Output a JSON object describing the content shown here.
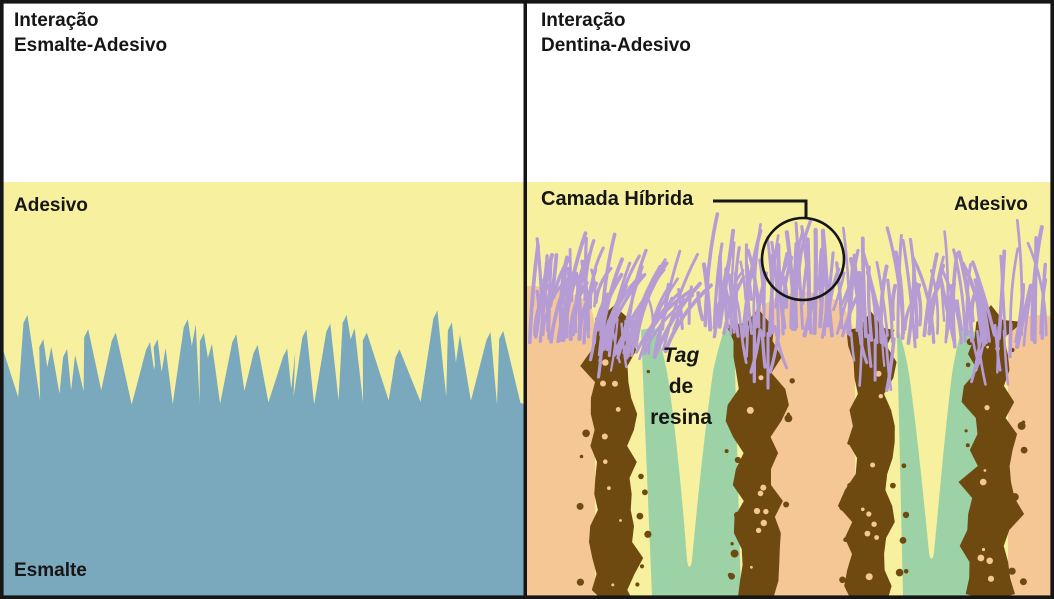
{
  "figure": {
    "left_panel": {
      "title": {
        "line1": "Interação",
        "line2": "Esmalte-Adesivo"
      },
      "labels": {
        "adhesive": "Adesivo",
        "enamel": "Esmalte"
      }
    },
    "right_panel": {
      "title": {
        "line1": "Interação",
        "line2": "Dentina-Adesivo"
      },
      "labels": {
        "hybrid_layer": "Camada Híbrida",
        "adhesive": "Adesivo",
        "resin_tag": {
          "line1": "Tag",
          "line2": "de",
          "line3": "resina"
        }
      }
    },
    "colors": {
      "background": "#ffffff",
      "adhesive_yellow": "#f7f09f",
      "enamel_blue": "#7aa8bc",
      "dentin_orange": "#f5c795",
      "peritubular_brown": "#6f4a10",
      "tubule_green": "#9dd2a7",
      "collagen_purple": "#b69cd5",
      "outline": "#161616"
    }
  }
}
